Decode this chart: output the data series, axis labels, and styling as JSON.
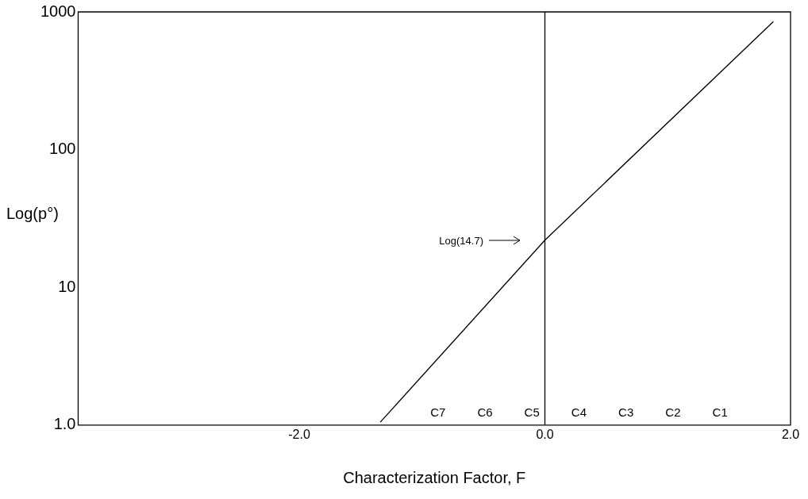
{
  "chart_data": {
    "type": "line",
    "xlabel": "Characterization Factor, F",
    "ylabel": "Log(p°)",
    "series": [
      {
        "color": "#000000",
        "x": [
          -1.34,
          0,
          1.86
        ],
        "values": [
          1.05,
          22,
          850
        ]
      }
    ],
    "xlim": [
      -3.8,
      2.0
    ],
    "xticks": [
      {
        "value": -2,
        "label": "-2.0"
      },
      {
        "value": 0,
        "label": "0.0"
      },
      {
        "value": 2,
        "label": "2.0"
      }
    ],
    "ylim": [
      1,
      1000
    ],
    "yticks": [
      {
        "value": 1,
        "label": "1.0"
      },
      10,
      100,
      1000
    ],
    "log": "y",
    "grid": false,
    "legend": false,
    "marker": "none",
    "line_style": "solid",
    "ref_lines": [
      {
        "axis": "x",
        "value": 0,
        "color": "#000000"
      }
    ],
    "annotations": [
      "Log(14.7)",
      "C7",
      "C6",
      "C5",
      "C4",
      "C3",
      "C2",
      "C1"
    ]
  }
}
